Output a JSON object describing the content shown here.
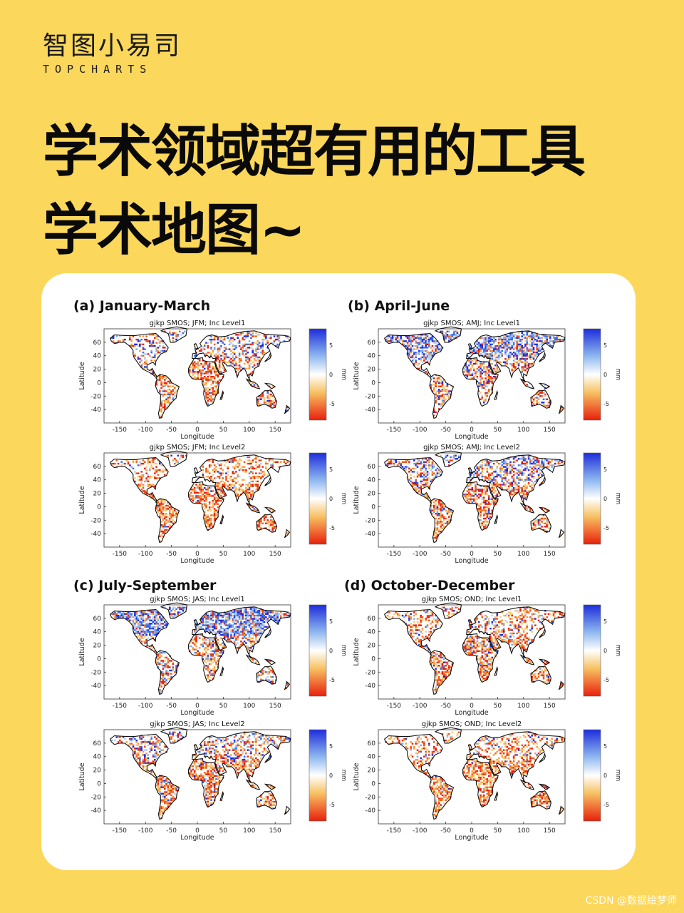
{
  "brand": {
    "name": "智图小易司",
    "sub": "TOPCHARTS"
  },
  "headline": {
    "line1": "学术领域超有用的工具",
    "line2": "学术地图~"
  },
  "watermark": "CSDN @数据绘梦师",
  "colors": {
    "background": "#FBD75B",
    "card": "#FFFFFF",
    "negative": "#E8200C",
    "positive": "#1E3CD8"
  },
  "chart_data": [
    {
      "type": "heatmap",
      "panel_title": "(a)  January-March",
      "title": "gjkp SMOS; JFM; Inc Level1",
      "xlabel": "Longitude",
      "ylabel": "Latitude",
      "xticks": [
        "-150",
        "-100",
        "-50",
        "0",
        "50",
        "100",
        "150"
      ],
      "yticks": [
        "60",
        "40",
        "20",
        "0",
        "-20",
        "-40"
      ],
      "xlim": [
        -180,
        180
      ],
      "ylim": [
        -60,
        80
      ],
      "colorbar": {
        "label": "mm",
        "ticks": [
          "5",
          "0",
          "-5"
        ]
      }
    },
    {
      "type": "heatmap",
      "panel_title": "",
      "title": "gjkp SMOS; JFM; Inc Level2",
      "xlabel": "Longitude",
      "ylabel": "Latitude",
      "xticks": [
        "-150",
        "-100",
        "-50",
        "0",
        "50",
        "100",
        "150"
      ],
      "yticks": [
        "60",
        "40",
        "20",
        "0",
        "-20",
        "-40"
      ],
      "xlim": [
        -180,
        180
      ],
      "ylim": [
        -60,
        80
      ],
      "colorbar": {
        "label": "mm",
        "ticks": [
          "5",
          "0",
          "-5"
        ]
      }
    },
    {
      "type": "heatmap",
      "panel_title": "(b) April-June",
      "title": "gjkp SMOS; AMJ; Inc Level1",
      "xlabel": "Longitude",
      "ylabel": "Latitude",
      "xticks": [
        "-150",
        "-100",
        "-50",
        "0",
        "50",
        "100",
        "150"
      ],
      "yticks": [
        "60",
        "40",
        "20",
        "0",
        "-20",
        "-40"
      ],
      "xlim": [
        -180,
        180
      ],
      "ylim": [
        -60,
        80
      ],
      "colorbar": {
        "label": "mm",
        "ticks": [
          "5",
          "0",
          "-5"
        ]
      }
    },
    {
      "type": "heatmap",
      "panel_title": "",
      "title": "gjkp SMOS; AMJ; Inc Level2",
      "xlabel": "Longitude",
      "ylabel": "Latitude",
      "xticks": [
        "-150",
        "-100",
        "-50",
        "0",
        "50",
        "100",
        "150"
      ],
      "yticks": [
        "60",
        "40",
        "20",
        "0",
        "-20",
        "-40"
      ],
      "xlim": [
        -180,
        180
      ],
      "ylim": [
        -60,
        80
      ],
      "colorbar": {
        "label": "mm",
        "ticks": [
          "5",
          "0",
          "-5"
        ]
      }
    },
    {
      "type": "heatmap",
      "panel_title": "(c) July-September",
      "title": "gjkp SMOS; JAS; Inc Level1",
      "xlabel": "Longitude",
      "ylabel": "Latitude",
      "xticks": [
        "-150",
        "-100",
        "-50",
        "0",
        "50",
        "100",
        "150"
      ],
      "yticks": [
        "60",
        "40",
        "20",
        "0",
        "-20",
        "-40"
      ],
      "xlim": [
        -180,
        180
      ],
      "ylim": [
        -60,
        80
      ],
      "colorbar": {
        "label": "mm",
        "ticks": [
          "5",
          "0",
          "-5"
        ]
      }
    },
    {
      "type": "heatmap",
      "panel_title": "",
      "title": "gjkp SMOS; JAS; Inc Level2",
      "xlabel": "Longitude",
      "ylabel": "Latitude",
      "xticks": [
        "-150",
        "-100",
        "-50",
        "0",
        "50",
        "100",
        "150"
      ],
      "yticks": [
        "60",
        "40",
        "20",
        "0",
        "-20",
        "-40"
      ],
      "xlim": [
        -180,
        180
      ],
      "ylim": [
        -60,
        80
      ],
      "colorbar": {
        "label": "mm",
        "ticks": [
          "5",
          "0",
          "-5"
        ]
      }
    },
    {
      "type": "heatmap",
      "panel_title": "(d) October-December",
      "title": "gjkp SMOS; OND; Inc Level1",
      "xlabel": "Longitude",
      "ylabel": "Latitude",
      "xticks": [
        "-150",
        "-100",
        "-50",
        "0",
        "50",
        "100",
        "150"
      ],
      "yticks": [
        "60",
        "40",
        "20",
        "0",
        "-20",
        "-40"
      ],
      "xlim": [
        -180,
        180
      ],
      "ylim": [
        -60,
        80
      ],
      "colorbar": {
        "label": "mm",
        "ticks": [
          "5",
          "0",
          "-5"
        ]
      }
    },
    {
      "type": "heatmap",
      "panel_title": "",
      "title": "gjkp SMOS; OND; Inc Level2",
      "xlabel": "Longitude",
      "ylabel": "Latitude",
      "xticks": [
        "-150",
        "-100",
        "-50",
        "0",
        "50",
        "100",
        "150"
      ],
      "yticks": [
        "60",
        "40",
        "20",
        "0",
        "-20",
        "-40"
      ],
      "xlim": [
        -180,
        180
      ],
      "ylim": [
        -60,
        80
      ],
      "colorbar": {
        "label": "mm",
        "ticks": [
          "5",
          "0",
          "-5"
        ]
      }
    }
  ]
}
